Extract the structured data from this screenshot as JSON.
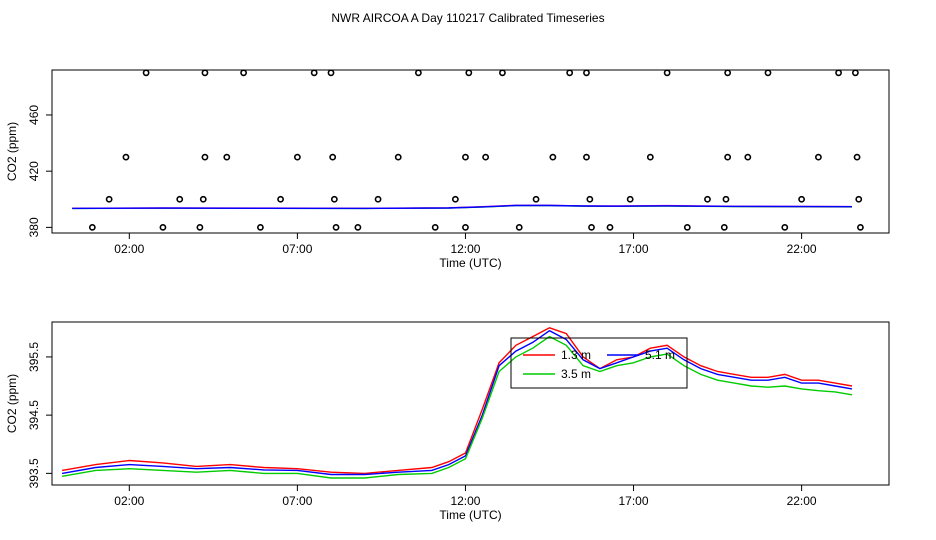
{
  "title": "NWR AIRCOA A  Day 110217  Calibrated Timeseries",
  "colors": {
    "red": "#ff0000",
    "green": "#00cc00",
    "blue": "#0000ff",
    "purple": "#cc00cc",
    "axis": "#000000"
  },
  "chart_data": [
    {
      "type": "scatter",
      "title": "",
      "xlabel": "Time (UTC)",
      "ylabel": "CO2 (ppm)",
      "x_unit": "hours UTC",
      "xlim": [
        -0.3,
        24.6
      ],
      "ylim": [
        376,
        492
      ],
      "xticks": [
        2,
        7,
        12,
        17,
        22
      ],
      "xtick_labels": [
        "02:00",
        "07:00",
        "12:00",
        "17:00",
        "22:00"
      ],
      "yticks": [
        380,
        420,
        460
      ],
      "ytick_labels": [
        "380",
        "420",
        "460"
      ],
      "grid": false,
      "points": [
        {
          "x": 0.9,
          "y": 380
        },
        {
          "x": 1.4,
          "y": 400
        },
        {
          "x": 1.9,
          "y": 430
        },
        {
          "x": 2.5,
          "y": 490
        },
        {
          "x": 3.0,
          "y": 380
        },
        {
          "x": 3.5,
          "y": 400
        },
        {
          "x": 4.1,
          "y": 380
        },
        {
          "x": 4.2,
          "y": 400
        },
        {
          "x": 4.25,
          "y": 430
        },
        {
          "x": 4.25,
          "y": 490
        },
        {
          "x": 4.9,
          "y": 430
        },
        {
          "x": 5.4,
          "y": 490
        },
        {
          "x": 5.9,
          "y": 380
        },
        {
          "x": 6.5,
          "y": 400
        },
        {
          "x": 7.0,
          "y": 430
        },
        {
          "x": 7.5,
          "y": 490
        },
        {
          "x": 8.0,
          "y": 490
        },
        {
          "x": 8.05,
          "y": 430
        },
        {
          "x": 8.1,
          "y": 400
        },
        {
          "x": 8.15,
          "y": 380
        },
        {
          "x": 8.8,
          "y": 380
        },
        {
          "x": 9.4,
          "y": 400
        },
        {
          "x": 10.0,
          "y": 430
        },
        {
          "x": 10.6,
          "y": 490
        },
        {
          "x": 11.1,
          "y": 380
        },
        {
          "x": 11.7,
          "y": 400
        },
        {
          "x": 12.0,
          "y": 380
        },
        {
          "x": 12.0,
          "y": 430
        },
        {
          "x": 12.1,
          "y": 490
        },
        {
          "x": 12.6,
          "y": 430
        },
        {
          "x": 13.1,
          "y": 490
        },
        {
          "x": 13.6,
          "y": 380
        },
        {
          "x": 14.1,
          "y": 400
        },
        {
          "x": 14.6,
          "y": 430
        },
        {
          "x": 15.1,
          "y": 490
        },
        {
          "x": 15.6,
          "y": 490
        },
        {
          "x": 15.6,
          "y": 430
        },
        {
          "x": 15.7,
          "y": 400
        },
        {
          "x": 15.75,
          "y": 380
        },
        {
          "x": 16.3,
          "y": 380
        },
        {
          "x": 16.9,
          "y": 400
        },
        {
          "x": 17.5,
          "y": 430
        },
        {
          "x": 18.0,
          "y": 490
        },
        {
          "x": 18.6,
          "y": 380
        },
        {
          "x": 19.2,
          "y": 400
        },
        {
          "x": 19.7,
          "y": 380
        },
        {
          "x": 19.75,
          "y": 400
        },
        {
          "x": 19.8,
          "y": 430
        },
        {
          "x": 19.8,
          "y": 490
        },
        {
          "x": 20.4,
          "y": 430
        },
        {
          "x": 21.0,
          "y": 490
        },
        {
          "x": 21.5,
          "y": 380
        },
        {
          "x": 22.0,
          "y": 400
        },
        {
          "x": 22.5,
          "y": 430
        },
        {
          "x": 23.1,
          "y": 490
        },
        {
          "x": 23.6,
          "y": 490
        },
        {
          "x": 23.65,
          "y": 430
        },
        {
          "x": 23.7,
          "y": 400
        },
        {
          "x": 23.75,
          "y": 380
        }
      ],
      "series": [
        {
          "color": "#00cc00",
          "x": [
            0.3,
            3,
            6,
            9,
            11.5,
            12.5,
            13.5,
            14.5,
            15.5,
            16.5,
            18,
            20,
            23.5
          ],
          "values": [
            393.5,
            393.6,
            393.6,
            393.5,
            393.8,
            394.5,
            395.5,
            395.5,
            395.1,
            395,
            395.2,
            394.8,
            394.6
          ]
        },
        {
          "color": "#cc00cc",
          "x": [
            0.3,
            3,
            6,
            9,
            11.5,
            12.5,
            13.5,
            14.5,
            15.5,
            16.5,
            18,
            20,
            23.5
          ],
          "values": [
            393.6,
            393.8,
            393.7,
            393.6,
            393.9,
            394.7,
            395.7,
            395.7,
            395.3,
            395.2,
            395.5,
            395,
            394.8
          ]
        },
        {
          "color": "#0000ff",
          "x": [
            0.3,
            3,
            6,
            9,
            11.5,
            12.5,
            13.5,
            14.5,
            15.5,
            16.5,
            18,
            20,
            23.5
          ],
          "values": [
            393.5,
            393.7,
            393.6,
            393.5,
            393.8,
            394.6,
            395.6,
            395.6,
            395.2,
            395.1,
            395.3,
            394.9,
            394.7
          ]
        }
      ]
    },
    {
      "type": "line",
      "title": "",
      "xlabel": "Time (UTC)",
      "ylabel": "CO2 (ppm)",
      "x_unit": "hours UTC",
      "xlim": [
        -0.3,
        24.6
      ],
      "ylim": [
        393.3,
        396.1
      ],
      "xticks": [
        2,
        7,
        12,
        17,
        22
      ],
      "xtick_labels": [
        "02:00",
        "07:00",
        "12:00",
        "17:00",
        "22:00"
      ],
      "yticks": [
        393.5,
        394.5,
        395.5
      ],
      "ytick_labels": [
        "393.5",
        "394.5",
        "395.5"
      ],
      "grid": false,
      "legend": {
        "placement": "top-center",
        "entries": [
          {
            "label": "1.3 m",
            "color": "#ff0000"
          },
          {
            "label": "5.1 m",
            "color": "#0000ff"
          },
          {
            "label": "3.5 m",
            "color": "#00cc00"
          }
        ]
      },
      "series": [
        {
          "name": "1.3 m",
          "color": "#ff0000",
          "x": [
            0,
            1,
            2,
            3,
            4,
            5,
            6,
            7,
            8,
            9,
            10,
            11,
            11.5,
            12,
            12.5,
            13,
            13.5,
            14,
            14.5,
            15,
            15.5,
            16,
            16.5,
            17,
            17.5,
            18,
            18.5,
            19,
            19.5,
            20,
            20.5,
            21,
            21.5,
            22,
            22.5,
            23,
            23.5
          ],
          "values": [
            393.55,
            393.65,
            393.72,
            393.68,
            393.62,
            393.65,
            393.6,
            393.58,
            393.52,
            393.5,
            393.55,
            393.6,
            393.7,
            393.85,
            394.6,
            395.4,
            395.7,
            395.85,
            396.0,
            395.9,
            395.5,
            395.3,
            395.45,
            395.5,
            395.65,
            395.7,
            395.5,
            395.35,
            395.25,
            395.2,
            395.15,
            395.15,
            395.2,
            395.1,
            395.1,
            395.05,
            395.0
          ]
        },
        {
          "name": "5.1 m",
          "color": "#0000ff",
          "x": [
            0,
            1,
            2,
            3,
            4,
            5,
            6,
            7,
            8,
            9,
            10,
            11,
            11.5,
            12,
            12.5,
            13,
            13.5,
            14,
            14.5,
            15,
            15.5,
            16,
            16.5,
            17,
            17.5,
            18,
            18.5,
            19,
            19.5,
            20,
            20.5,
            21,
            21.5,
            22,
            22.5,
            23,
            23.5
          ],
          "values": [
            393.5,
            393.6,
            393.65,
            393.62,
            393.58,
            393.6,
            393.56,
            393.55,
            393.48,
            393.48,
            393.52,
            393.55,
            393.65,
            393.8,
            394.5,
            395.35,
            395.6,
            395.75,
            395.95,
            395.8,
            395.45,
            395.3,
            395.4,
            395.5,
            395.6,
            395.65,
            395.45,
            395.3,
            395.2,
            395.15,
            395.1,
            395.1,
            395.15,
            395.05,
            395.05,
            395.0,
            394.95
          ]
        },
        {
          "name": "3.5 m",
          "color": "#00cc00",
          "x": [
            0,
            1,
            2,
            3,
            4,
            5,
            6,
            7,
            8,
            9,
            10,
            11,
            11.5,
            12,
            12.5,
            13,
            13.5,
            14,
            14.5,
            15,
            15.5,
            16,
            16.5,
            17,
            17.5,
            18,
            18.5,
            19,
            19.5,
            20,
            20.5,
            21,
            21.5,
            22,
            22.5,
            23,
            23.5
          ],
          "values": [
            393.45,
            393.55,
            393.58,
            393.55,
            393.52,
            393.55,
            393.5,
            393.5,
            393.42,
            393.42,
            393.48,
            393.5,
            393.6,
            393.75,
            394.45,
            395.25,
            395.5,
            395.65,
            395.85,
            395.7,
            395.35,
            395.25,
            395.35,
            395.4,
            395.5,
            395.55,
            395.35,
            395.2,
            395.1,
            395.05,
            395.0,
            394.98,
            395.0,
            394.95,
            394.92,
            394.9,
            394.85
          ]
        }
      ]
    }
  ]
}
